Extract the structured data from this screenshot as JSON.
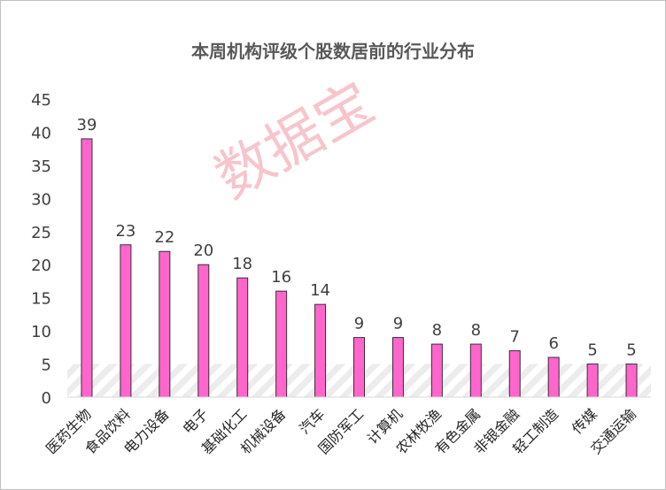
{
  "chart_data": {
    "type": "bar",
    "title": "本周机构评级个股数居前的行业分布",
    "categories": [
      "医药生物",
      "食品饮料",
      "电力设备",
      "电子",
      "基础化工",
      "机械设备",
      "汽车",
      "国防军工",
      "计算机",
      "农林牧渔",
      "有色金属",
      "非银金融",
      "轻工制造",
      "传媒",
      "交通运输"
    ],
    "values": [
      39,
      23,
      22,
      20,
      18,
      16,
      14,
      9,
      9,
      8,
      8,
      7,
      6,
      5,
      5
    ],
    "yticks": [
      0,
      5,
      10,
      15,
      20,
      25,
      30,
      35,
      40,
      45
    ],
    "ylim": [
      0,
      45
    ],
    "xlabel": "",
    "ylabel": "",
    "grid": false,
    "legend": "none",
    "bar_color": "#ff66cc",
    "bar_edge_color": "#3a2a3a"
  },
  "watermark": "数据宝"
}
